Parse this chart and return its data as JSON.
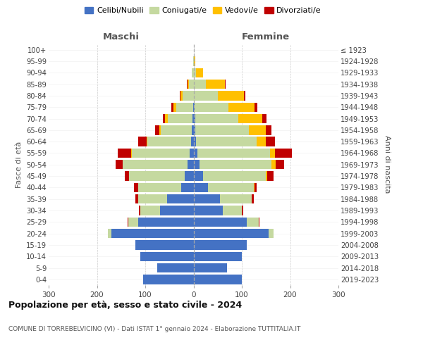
{
  "age_groups": [
    "0-4",
    "5-9",
    "10-14",
    "15-19",
    "20-24",
    "25-29",
    "30-34",
    "35-39",
    "40-44",
    "45-49",
    "50-54",
    "55-59",
    "60-64",
    "65-69",
    "70-74",
    "75-79",
    "80-84",
    "85-89",
    "90-94",
    "95-99",
    "100+"
  ],
  "birth_years": [
    "2019-2023",
    "2014-2018",
    "2009-2013",
    "2004-2008",
    "1999-2003",
    "1994-1998",
    "1989-1993",
    "1984-1988",
    "1979-1983",
    "1974-1978",
    "1969-1973",
    "1964-1968",
    "1959-1963",
    "1954-1958",
    "1949-1953",
    "1944-1948",
    "1939-1943",
    "1934-1938",
    "1929-1933",
    "1924-1928",
    "≤ 1923"
  ],
  "males": {
    "celibi": [
      105,
      75,
      110,
      120,
      170,
      115,
      70,
      55,
      25,
      18,
      12,
      8,
      5,
      3,
      2,
      1,
      0,
      0,
      0,
      0,
      0
    ],
    "coniugati": [
      0,
      0,
      0,
      0,
      8,
      20,
      40,
      60,
      90,
      115,
      135,
      120,
      90,
      65,
      52,
      35,
      22,
      10,
      3,
      1,
      0
    ],
    "vedovi": [
      0,
      0,
      0,
      0,
      0,
      0,
      0,
      0,
      0,
      0,
      0,
      1,
      2,
      3,
      5,
      5,
      5,
      3,
      1,
      0,
      0
    ],
    "divorziati": [
      0,
      0,
      0,
      0,
      0,
      1,
      3,
      5,
      8,
      10,
      15,
      28,
      18,
      8,
      5,
      5,
      2,
      1,
      0,
      0,
      0
    ]
  },
  "females": {
    "nubili": [
      100,
      70,
      100,
      110,
      155,
      110,
      60,
      55,
      30,
      20,
      12,
      8,
      5,
      4,
      3,
      2,
      0,
      0,
      0,
      0,
      0
    ],
    "coniugate": [
      0,
      0,
      0,
      0,
      10,
      25,
      40,
      65,
      95,
      130,
      150,
      150,
      125,
      110,
      90,
      70,
      50,
      25,
      5,
      1,
      0
    ],
    "vedove": [
      0,
      0,
      0,
      0,
      0,
      0,
      0,
      0,
      1,
      3,
      8,
      10,
      20,
      35,
      50,
      55,
      55,
      40,
      15,
      3,
      1
    ],
    "divorziate": [
      0,
      0,
      0,
      0,
      0,
      2,
      3,
      5,
      5,
      12,
      18,
      35,
      18,
      12,
      8,
      5,
      3,
      2,
      0,
      0,
      0
    ]
  },
  "colors": {
    "celibi": "#4472c4",
    "coniugati": "#c5d9a0",
    "vedovi": "#ffc000",
    "divorziati": "#c00000"
  },
  "legend_labels": [
    "Celibi/Nubili",
    "Coniugati/e",
    "Vedovi/e",
    "Divorziati/e"
  ],
  "xlim": 300,
  "title": "Popolazione per età, sesso e stato civile - 2024",
  "subtitle": "COMUNE DI TORREBELVICINO (VI) - Dati ISTAT 1° gennaio 2024 - Elaborazione TUTTITALIA.IT",
  "xlabel_left": "Maschi",
  "xlabel_right": "Femmine",
  "ylabel_left": "Fasce di età",
  "ylabel_right": "Anni di nascita",
  "bg_color": "#ffffff",
  "grid_color": "#cccccc"
}
